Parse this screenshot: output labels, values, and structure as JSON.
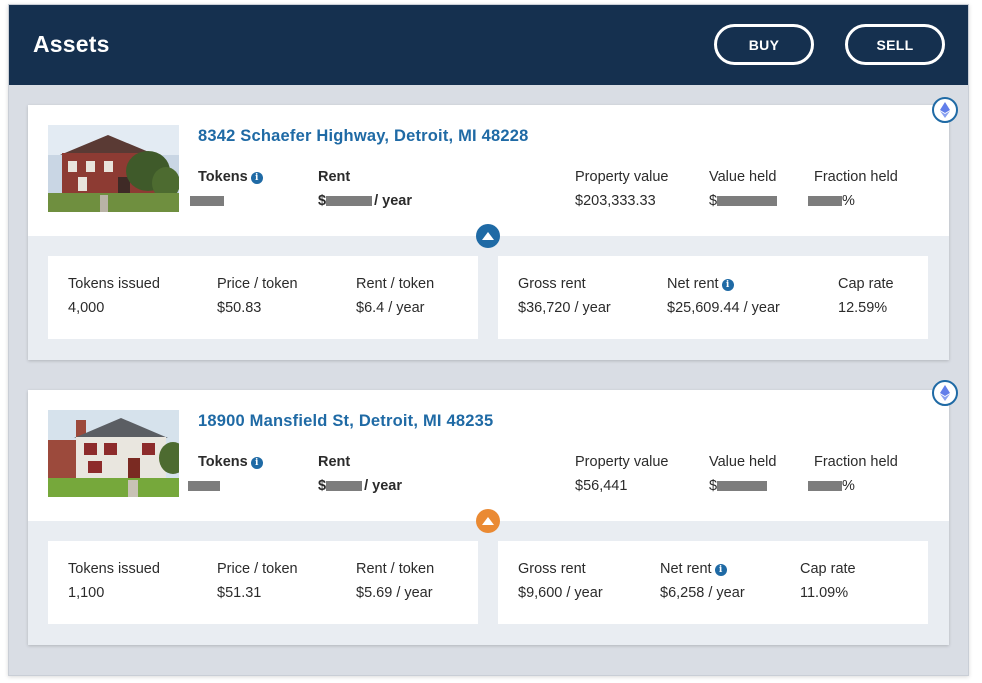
{
  "header": {
    "title": "Assets",
    "buy_label": "BUY",
    "sell_label": "SELL"
  },
  "assets": [
    {
      "address": "8342 Schaefer Highway, Detroit, MI 48228",
      "tokens_label": "Tokens",
      "rent_label": "Rent",
      "rent_suffix": "/ year",
      "property_value_label": "Property value",
      "property_value": "$203,333.33",
      "value_held_label": "Value held",
      "value_held_prefix": "$",
      "fraction_held_label": "Fraction held",
      "fraction_held_suffix": "%",
      "rent_prefix": "$",
      "toggle_icon": "chevron-up-icon",
      "toggle_color": "#1f6aa5",
      "tokens_issued_label": "Tokens issued",
      "tokens_issued": "4,000",
      "price_token_label": "Price / token",
      "price_token": "$50.83",
      "rent_token_label": "Rent / token",
      "rent_token": "$6.4 / year",
      "gross_rent_label": "Gross rent",
      "gross_rent": "$36,720 / year",
      "net_rent_label": "Net rent",
      "net_rent": "$25,609.44 / year",
      "cap_rate_label": "Cap rate",
      "cap_rate": "12.59%"
    },
    {
      "address": "18900 Mansfield St, Detroit, MI 48235",
      "tokens_label": "Tokens",
      "rent_label": "Rent",
      "rent_suffix": "/ year",
      "property_value_label": "Property value",
      "property_value": "$56,441",
      "value_held_label": "Value held",
      "value_held_prefix": "$",
      "fraction_held_label": "Fraction held",
      "fraction_held_suffix": "%",
      "rent_prefix": "$",
      "toggle_icon": "chevron-up-icon",
      "toggle_color": "#ea8a33",
      "tokens_issued_label": "Tokens issued",
      "tokens_issued": "1,100",
      "price_token_label": "Price / token",
      "price_token": "$51.31",
      "rent_token_label": "Rent / token",
      "rent_token": "$5.69 / year",
      "gross_rent_label": "Gross rent",
      "gross_rent": "$9,600 / year",
      "net_rent_label": "Net rent",
      "net_rent": "$6,258 / year",
      "cap_rate_label": "Cap rate",
      "cap_rate": "11.09%"
    }
  ],
  "icons": {
    "network": "ethereum-icon",
    "info": "info-icon"
  },
  "colors": {
    "header": "#15304f",
    "accent": "#1f6aa5",
    "orange": "#ea8a33",
    "page_bg": "#d9dde4"
  }
}
